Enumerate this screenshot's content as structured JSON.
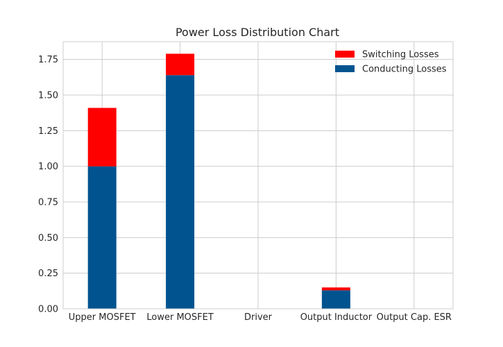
{
  "chart_data": {
    "type": "bar",
    "stacked": true,
    "title": "Power Loss Distribution Chart",
    "xlabel": "",
    "ylabel": "",
    "categories": [
      "Upper MOSFET",
      "Lower MOSFET",
      "Driver",
      "Output Inductor",
      "Output Cap. ESR"
    ],
    "series": [
      {
        "name": "Conducting Losses",
        "color": "#00538f",
        "values": [
          1.0,
          1.64,
          0.0,
          0.13,
          0.0
        ]
      },
      {
        "name": "Switching Losses",
        "color": "#ff0000",
        "values": [
          0.41,
          0.15,
          0.0,
          0.02,
          0.0
        ]
      }
    ],
    "ylim": [
      0,
      1.875
    ],
    "yticks": [
      "0.00",
      "0.25",
      "0.50",
      "0.75",
      "1.00",
      "1.25",
      "1.50",
      "1.75"
    ],
    "ytick_values": [
      0,
      0.25,
      0.5,
      0.75,
      1.0,
      1.25,
      1.5,
      1.75
    ],
    "grid": true,
    "legend": {
      "placement": "top-right",
      "order": [
        "Switching Losses",
        "Conducting Losses"
      ]
    }
  }
}
